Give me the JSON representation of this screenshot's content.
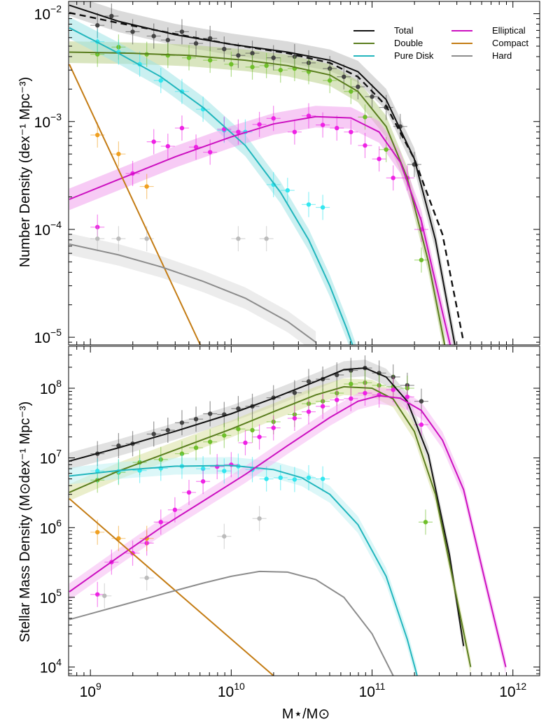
{
  "chart_data": [
    {
      "type": "line",
      "panel": "top",
      "ylabel": "Number Density (dex⁻¹ Mpc⁻³)",
      "xlabel": "",
      "xscale": "log",
      "yscale": "log",
      "xlim": [
        700000000.0,
        1550000000000.0
      ],
      "ylim": [
        8.5e-06,
        0.013
      ],
      "x_ticks": [
        "1e9",
        "1e10",
        "1e11",
        "1e12"
      ],
      "y_ticks": [
        {
          "value": 1e-05,
          "base": "10",
          "exp": "−5"
        },
        {
          "value": 0.0001,
          "base": "10",
          "exp": "−4"
        },
        {
          "value": 0.001,
          "base": "10",
          "exp": "−3"
        },
        {
          "value": 0.01,
          "base": "10",
          "exp": "−2"
        }
      ],
      "legend_position": "top-right",
      "series": [
        {
          "name": "Total",
          "color": "#111111",
          "band": "#bbbbbb",
          "logM": [
            8.85,
            9.2,
            9.6,
            10.0,
            10.4,
            10.7,
            10.9,
            11.1,
            11.3,
            11.45,
            11.6
          ],
          "values": [
            0.012,
            0.0085,
            0.0064,
            0.0052,
            0.0044,
            0.0037,
            0.0029,
            0.0016,
            0.00045,
            8e-05,
            7e-06
          ]
        },
        {
          "name": "Total (dashed)",
          "color": "#111111",
          "dashed": true,
          "logM": [
            8.85,
            9.2,
            9.6,
            10.0,
            10.4,
            10.7,
            10.9,
            11.1,
            11.3,
            11.5,
            11.65
          ],
          "values": [
            0.0102,
            0.0082,
            0.0065,
            0.0052,
            0.0043,
            0.0035,
            0.0026,
            0.0014,
            0.00045,
            9e-05,
            9e-06
          ]
        },
        {
          "name": "Double",
          "color": "#5a7d1e",
          "band": "#b9d08a",
          "logM": [
            8.85,
            9.3,
            9.7,
            10.1,
            10.4,
            10.7,
            10.9,
            11.1,
            11.25,
            11.4,
            11.52
          ],
          "values": [
            0.0044,
            0.0043,
            0.0041,
            0.0037,
            0.0033,
            0.0027,
            0.0019,
            0.0009,
            0.0003,
            5e-05,
            8e-06
          ]
        },
        {
          "name": "Pure Disk",
          "color": "#22b6bd",
          "band": "#9ee3e6",
          "logM": [
            8.85,
            9.2,
            9.5,
            9.8,
            10.1,
            10.35,
            10.55,
            10.7,
            10.82,
            10.95
          ],
          "values": [
            0.0074,
            0.0043,
            0.0026,
            0.00135,
            0.0006,
            0.00022,
            8e-05,
            3e-05,
            1.2e-05,
            4e-06
          ]
        },
        {
          "name": "Elliptical",
          "color": "#cc10c0",
          "band": "#f0a0ec",
          "logM": [
            8.85,
            9.2,
            9.6,
            10.0,
            10.3,
            10.6,
            10.85,
            11.05,
            11.2,
            11.35,
            11.5,
            11.57
          ],
          "values": [
            0.00019,
            0.00029,
            0.00047,
            0.00072,
            0.00095,
            0.00111,
            0.00108,
            0.0008,
            0.00042,
            0.00012,
            1.7e-05,
            7e-06
          ]
        },
        {
          "name": "Compact",
          "color": "#c47c14",
          "logM": [
            8.85,
            9.78
          ],
          "values": [
            0.0034,
            8.5e-06
          ]
        },
        {
          "name": "Hard",
          "color": "#8c8c8c",
          "band": "#dcdcdc",
          "logM": [
            8.85,
            9.2,
            9.5,
            9.8,
            10.1,
            10.4,
            10.6
          ],
          "values": [
            7.3e-05,
            5.8e-05,
            4.5e-05,
            3.3e-05,
            2.3e-05,
            1.4e-05,
            9e-06
          ]
        }
      ],
      "points": [
        {
          "series": "Total",
          "color": "#444444",
          "logM": [
            9.05,
            9.15,
            9.3,
            9.45,
            9.55,
            9.65,
            9.75,
            9.85,
            9.95,
            10.05,
            10.15,
            10.3,
            10.45,
            10.55,
            10.7,
            10.8,
            10.9,
            11.0,
            11.1,
            11.2,
            11.3
          ],
          "values": [
            0.0078,
            0.0095,
            0.0068,
            0.0062,
            0.0057,
            0.0068,
            0.0053,
            0.0059,
            0.0047,
            0.0041,
            0.0043,
            0.0039,
            0.004,
            0.0035,
            0.0031,
            0.0026,
            0.0021,
            0.0017,
            0.00135,
            0.0009,
            0.0004
          ]
        },
        {
          "series": "Double",
          "color": "#6fbf2a",
          "logM": [
            9.05,
            9.2,
            9.4,
            9.55,
            9.7,
            9.85,
            10.0,
            10.15,
            10.25,
            10.35,
            10.45,
            10.55,
            10.7,
            10.85,
            10.95,
            11.1,
            11.35
          ],
          "values": [
            0.0042,
            0.0049,
            0.0042,
            0.0041,
            0.0039,
            0.0037,
            0.0034,
            0.0032,
            0.0033,
            0.003,
            0.0031,
            0.0029,
            0.0024,
            0.0019,
            0.0011,
            0.00055,
            5.2e-05
          ]
        },
        {
          "series": "Pure Disk",
          "color": "#33e6ef",
          "logM": [
            9.05,
            9.2,
            9.35,
            9.5,
            9.65,
            9.8,
            9.95,
            10.1,
            10.3,
            10.4,
            10.55,
            10.65
          ],
          "values": [
            0.0055,
            0.0044,
            0.0034,
            0.0024,
            0.0019,
            0.0013,
            0.00083,
            0.0008,
            0.00026,
            0.00023,
            0.00017,
            0.00016
          ]
        },
        {
          "series": "Elliptical",
          "color": "#ee22e4",
          "logM": [
            9.05,
            9.3,
            9.45,
            9.55,
            9.65,
            9.75,
            9.85,
            9.95,
            10.05,
            10.2,
            10.3,
            10.45,
            10.55,
            10.65,
            10.75,
            10.85,
            10.95,
            11.05,
            11.15,
            11.25,
            11.35
          ],
          "values": [
            0.000105,
            0.00033,
            0.00065,
            0.00059,
            0.00087,
            0.00058,
            0.00052,
            0.00085,
            0.0008,
            0.00094,
            0.00107,
            0.0008,
            0.00113,
            0.00093,
            0.00087,
            0.0008,
            0.0006,
            0.00045,
            0.0003,
            0.0003,
            0.0001
          ]
        },
        {
          "series": "Compact",
          "color": "#f0a020",
          "logM": [
            9.05,
            9.2,
            9.4
          ],
          "values": [
            0.00075,
            0.0005,
            0.00025
          ]
        },
        {
          "series": "Hard",
          "color": "#bbbbbb",
          "logM": [
            9.05,
            9.2,
            9.4,
            10.05,
            10.25
          ],
          "values": [
            8.2e-05,
            8.2e-05,
            8.2e-05,
            8.2e-05,
            8.2e-05
          ]
        }
      ]
    },
    {
      "type": "line",
      "panel": "bottom",
      "ylabel": "Stellar Mass Density (M⊙dex⁻¹ Mpc⁻³)",
      "xlabel": "M⋆/M⊙",
      "xscale": "log",
      "yscale": "log",
      "xlim": [
        700000000.0,
        1550000000000.0
      ],
      "ylim": [
        7500.0,
        400000000.0
      ],
      "x_ticks": [
        {
          "value": 1000000000.0,
          "base": "10",
          "exp": "9"
        },
        {
          "value": 10000000000.0,
          "base": "10",
          "exp": "10"
        },
        {
          "value": 100000000000.0,
          "base": "10",
          "exp": "11"
        },
        {
          "value": 1000000000000.0,
          "base": "10",
          "exp": "12"
        }
      ],
      "y_ticks": [
        {
          "value": 10000.0,
          "base": "10",
          "exp": "4"
        },
        {
          "value": 100000.0,
          "base": "10",
          "exp": "5"
        },
        {
          "value": 1000000.0,
          "base": "10",
          "exp": "6"
        },
        {
          "value": 10000000.0,
          "base": "10",
          "exp": "7"
        },
        {
          "value": 100000000.0,
          "base": "10",
          "exp": "8"
        }
      ],
      "series": [
        {
          "name": "Total",
          "color": "#111111",
          "band": "#c8c8c8",
          "logM": [
            8.85,
            9.2,
            9.6,
            10.0,
            10.3,
            10.6,
            10.8,
            10.95,
            11.1,
            11.25,
            11.4,
            11.55,
            11.65
          ],
          "values": [
            9000000.0,
            14000000.0,
            24000000.0,
            43000000.0,
            72000000.0,
            125000000.0,
            185000000.0,
            195000000.0,
            145000000.0,
            65000000.0,
            11000000.0,
            400000.0,
            20000.0
          ]
        },
        {
          "name": "Double",
          "color": "#5a7d1e",
          "band": "#d8e0a0",
          "logM": [
            8.85,
            9.2,
            9.6,
            10.0,
            10.3,
            10.6,
            10.8,
            11.0,
            11.15,
            11.3,
            11.45,
            11.6,
            11.7
          ],
          "values": [
            3200000.0,
            6500000.0,
            13000000.0,
            26000000.0,
            46000000.0,
            80000000.0,
            105000000.0,
            100000000.0,
            70000000.0,
            24000000.0,
            3000000.0,
            100000.0,
            10000.0
          ]
        },
        {
          "name": "Pure Disk",
          "color": "#22b6bd",
          "band": "#bff0f2",
          "logM": [
            8.85,
            9.2,
            9.6,
            10.0,
            10.3,
            10.5,
            10.7,
            10.9,
            11.1,
            11.25,
            11.32
          ],
          "values": [
            5500000.0,
            6600000.0,
            7600000.0,
            7800000.0,
            6800000.0,
            5200000.0,
            3000000.0,
            1100000.0,
            200000.0,
            25000.0,
            7500.0
          ]
        },
        {
          "name": "Elliptical",
          "color": "#cc10c0",
          "band": "#f6b8f2",
          "logM": [
            8.85,
            9.2,
            9.5,
            9.8,
            10.1,
            10.4,
            10.7,
            10.9,
            11.05,
            11.2,
            11.35,
            11.5,
            11.65,
            11.8,
            11.95
          ],
          "values": [
            120000.0,
            380000.0,
            1000000.0,
            2400000.0,
            5800000.0,
            15000000.0,
            38000000.0,
            65000000.0,
            78000000.0,
            72000000.0,
            48000000.0,
            18000000.0,
            3500000.0,
            180000.0,
            10000.0
          ]
        },
        {
          "name": "Compact",
          "color": "#c47c14",
          "logM": [
            8.85,
            10.3
          ],
          "values": [
            2600000.0,
            7500.0
          ]
        },
        {
          "name": "Hard",
          "color": "#8c8c8c",
          "logM": [
            8.85,
            9.2,
            9.5,
            9.8,
            10.0,
            10.2,
            10.4,
            10.6,
            10.8,
            11.0,
            11.15
          ],
          "values": [
            48000.0,
            75000.0,
            110000.0,
            160000.0,
            200000.0,
            235000.0,
            230000.0,
            180000.0,
            100000.0,
            30000.0,
            7500.0
          ]
        }
      ],
      "points": [
        {
          "series": "Total",
          "color": "#444444",
          "logM": [
            9.05,
            9.2,
            9.3,
            9.45,
            9.55,
            9.65,
            9.75,
            9.85,
            9.95,
            10.05,
            10.15,
            10.3,
            10.45,
            10.55,
            10.65,
            10.75,
            10.85,
            10.95,
            11.05,
            11.15,
            11.25,
            11.35
          ],
          "values": [
            11500000.0,
            15000000.0,
            16000000.0,
            22000000.0,
            25000000.0,
            32000000.0,
            36000000.0,
            43000000.0,
            42000000.0,
            51000000.0,
            55000000.0,
            73000000.0,
            86000000.0,
            125000000.0,
            135000000.0,
            155000000.0,
            180000000.0,
            195000000.0,
            165000000.0,
            145000000.0,
            110000000.0,
            65000000.0
          ]
        },
        {
          "series": "Double",
          "color": "#6fbf2a",
          "logM": [
            9.05,
            9.2,
            9.35,
            9.5,
            9.65,
            9.75,
            9.85,
            9.95,
            10.05,
            10.15,
            10.3,
            10.45,
            10.55,
            10.65,
            10.75,
            10.85,
            10.95,
            11.05,
            11.15,
            11.25,
            11.38
          ],
          "values": [
            4800000.0,
            6200000.0,
            8600000.0,
            9500000.0,
            11500000.0,
            14000000.0,
            17000000.0,
            21000000.0,
            26000000.0,
            25000000.0,
            33000000.0,
            42000000.0,
            60000000.0,
            65000000.0,
            85000000.0,
            115000000.0,
            120000000.0,
            110000000.0,
            105000000.0,
            100000000.0,
            1200000.0
          ]
        },
        {
          "series": "Pure Disk",
          "color": "#33e6ef",
          "logM": [
            9.05,
            9.2,
            9.35,
            9.5,
            9.65,
            9.8,
            9.95,
            10.05,
            10.15,
            10.25,
            10.35,
            10.45,
            10.55,
            10.65
          ],
          "values": [
            6500000.0,
            6400000.0,
            6600000.0,
            7100000.0,
            7600000.0,
            7000000.0,
            6500000.0,
            7600000.0,
            6800000.0,
            5000000.0,
            5200000.0,
            4900000.0,
            5200000.0,
            5000000.0
          ]
        },
        {
          "series": "Elliptical",
          "color": "#ee22e4",
          "logM": [
            9.05,
            9.15,
            9.3,
            9.4,
            9.5,
            9.6,
            9.7,
            9.8,
            9.9,
            10.0,
            10.1,
            10.2,
            10.3,
            10.45,
            10.55,
            10.65,
            10.75,
            10.85,
            10.95,
            11.05,
            11.15,
            11.25,
            11.35
          ],
          "values": [
            110000.0,
            320000.0,
            430000.0,
            600000.0,
            1200000.0,
            1800000.0,
            3200000.0,
            4600000.0,
            7500000.0,
            8000000.0,
            16500000.0,
            20000000.0,
            27000000.0,
            37000000.0,
            46000000.0,
            55000000.0,
            68000000.0,
            71000000.0,
            85000000.0,
            80000000.0,
            95000000.0,
            75000000.0,
            30000000.0
          ]
        },
        {
          "series": "Compact",
          "color": "#f0a020",
          "logM": [
            9.05,
            9.2,
            9.4
          ],
          "values": [
            860000.0,
            700000.0,
            700000.0
          ]
        },
        {
          "series": "Hard",
          "color": "#bbbbbb",
          "logM": [
            9.1,
            9.4,
            9.95,
            10.2
          ],
          "values": [
            105000.0,
            190000.0,
            750000.0,
            1350000.0
          ]
        }
      ]
    }
  ],
  "legend": {
    "items": [
      {
        "label": "Total",
        "color": "#111111"
      },
      {
        "label": "Double",
        "color": "#5a7d1e"
      },
      {
        "label": "Pure Disk",
        "color": "#22b6bd"
      },
      {
        "label": "Elliptical",
        "color": "#cc10c0"
      },
      {
        "label": "Compact",
        "color": "#c47c14"
      },
      {
        "label": "Hard",
        "color": "#8c8c8c"
      }
    ]
  }
}
